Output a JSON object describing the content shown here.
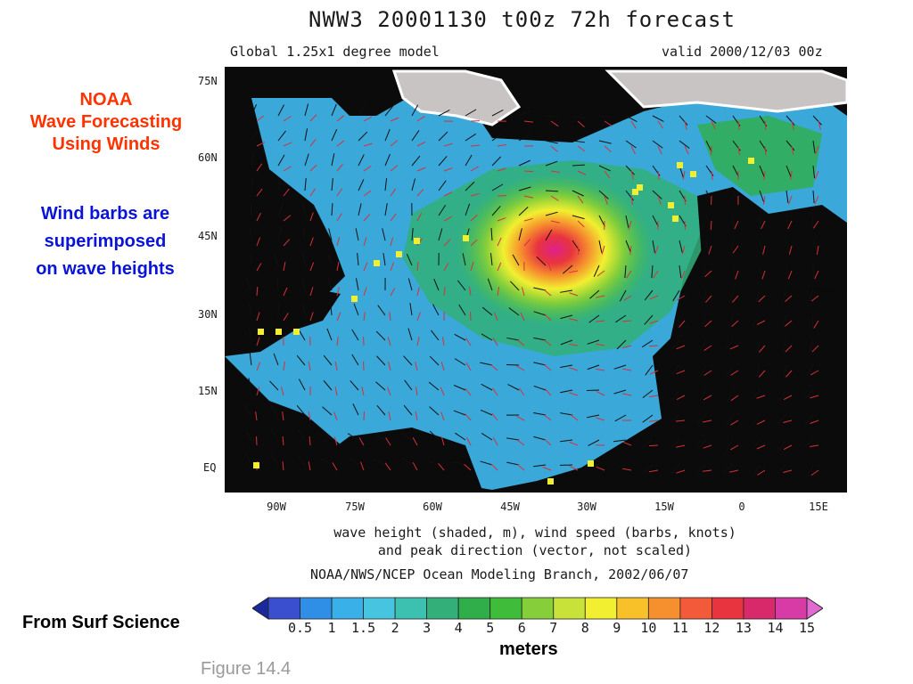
{
  "header": {
    "title": "NWW3 20001130 t00z  72h forecast",
    "model": "Global 1.25x1 degree model",
    "valid": "valid 2000/12/03 00z"
  },
  "side_title": [
    "NOAA",
    "Wave Forecasting",
    "Using Winds"
  ],
  "side_note": [
    "Wind barbs are",
    "superimposed",
    "on wave heights"
  ],
  "map": {
    "lat_labels": [
      "75N",
      "60N",
      "45N",
      "30N",
      "15N",
      "EQ"
    ],
    "lon_labels": [
      "90W",
      "75W",
      "60W",
      "45W",
      "30W",
      "15W",
      "0",
      "15E"
    ],
    "colors": {
      "land": "#0b0b0b",
      "ice": "#c9c4c4",
      "sea_low": "#3aa8d8",
      "sea_mid": "#33b39a",
      "peak": "#e0208c"
    }
  },
  "caption": [
    "wave height (shaded, m), wind speed (barbs, knots)",
    "and peak direction (vector, not scaled)"
  ],
  "credit": "NOAA/NWS/NCEP Ocean Modeling Branch, 2002/06/07",
  "colorbar": {
    "labels": [
      "0.5",
      "1",
      "1.5",
      "2",
      "3",
      "4",
      "5",
      "6",
      "7",
      "8",
      "9",
      "10",
      "11",
      "12",
      "13",
      "14",
      "15"
    ],
    "colors": [
      "#1a2a9c",
      "#3a4fd0",
      "#2f8fe6",
      "#3ab0e8",
      "#47c4e0",
      "#3cc0b0",
      "#33b07a",
      "#2fae4a",
      "#3fbd3a",
      "#86cf3a",
      "#c8e23a",
      "#f2ef30",
      "#f8c12a",
      "#f6902e",
      "#f25a3a",
      "#e8343e",
      "#d82a6a",
      "#d93ba6",
      "#e06ad2"
    ],
    "units": "meters"
  },
  "source_note": "From Surf Science",
  "figure_label": "Figure 14.4"
}
